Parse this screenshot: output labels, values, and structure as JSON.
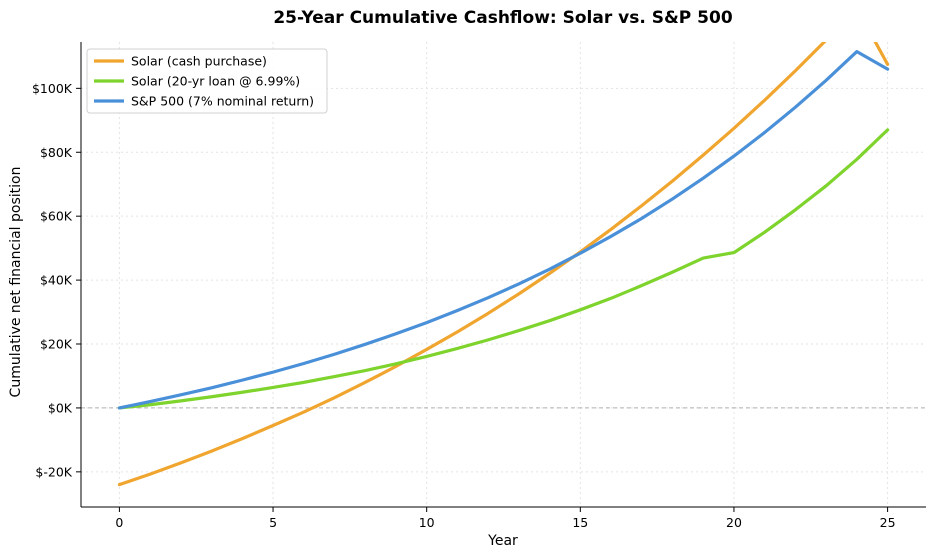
{
  "chart_data": {
    "type": "line",
    "title": "25-Year Cumulative Cashflow: Solar vs. S&P 500",
    "xlabel": "Year",
    "ylabel": "Cumulative net financial position",
    "xlim": [
      -1.25,
      26.25
    ],
    "ylim": [
      -31000,
      114500
    ],
    "xticks": [
      0,
      5,
      10,
      15,
      20,
      25
    ],
    "xtick_labels": [
      "0",
      "5",
      "10",
      "15",
      "20",
      "25"
    ],
    "yticks": [
      -20000,
      0,
      20000,
      40000,
      60000,
      80000,
      100000
    ],
    "ytick_labels": [
      "$-20K",
      "$0K",
      "$20K",
      "$40K",
      "$60K",
      "$80K",
      "$100K"
    ],
    "grid": true,
    "zero_line": true,
    "legend_position": "top-left",
    "x": [
      0,
      1,
      2,
      3,
      4,
      5,
      6,
      7,
      8,
      9,
      10,
      11,
      12,
      13,
      14,
      15,
      16,
      17,
      18,
      19,
      20,
      21,
      22,
      23,
      24,
      25
    ],
    "series": [
      {
        "name": "Solar (cash purchase)",
        "color": "#F0A52F",
        "values": [
          -24000,
          -20700,
          -17200,
          -13500,
          -9600,
          -5500,
          -1300,
          3200,
          8000,
          13000,
          18300,
          23800,
          29600,
          35700,
          42100,
          48800,
          55900,
          63300,
          71000,
          79100,
          87500,
          96300,
          105500,
          115100,
          125100,
          107500
        ]
      },
      {
        "name": "Solar (20-yr loan @ 6.99%)",
        "color": "#7ED42D",
        "values": [
          0,
          1000,
          2200,
          3500,
          4900,
          6400,
          8000,
          9800,
          11700,
          13800,
          16100,
          18600,
          21300,
          24200,
          27300,
          30700,
          34300,
          38300,
          42500,
          46900,
          48600,
          55000,
          62000,
          69500,
          77800,
          87000
        ]
      },
      {
        "name": "S&P 500 (7% nominal return)",
        "color": "#4A90D9",
        "values": [
          0,
          2000,
          4100,
          6300,
          8700,
          11200,
          13900,
          16800,
          19900,
          23200,
          26700,
          30500,
          34500,
          38800,
          43400,
          48400,
          53700,
          59300,
          65400,
          71900,
          78800,
          86200,
          94100,
          102500,
          111500,
          106000
        ]
      }
    ]
  }
}
